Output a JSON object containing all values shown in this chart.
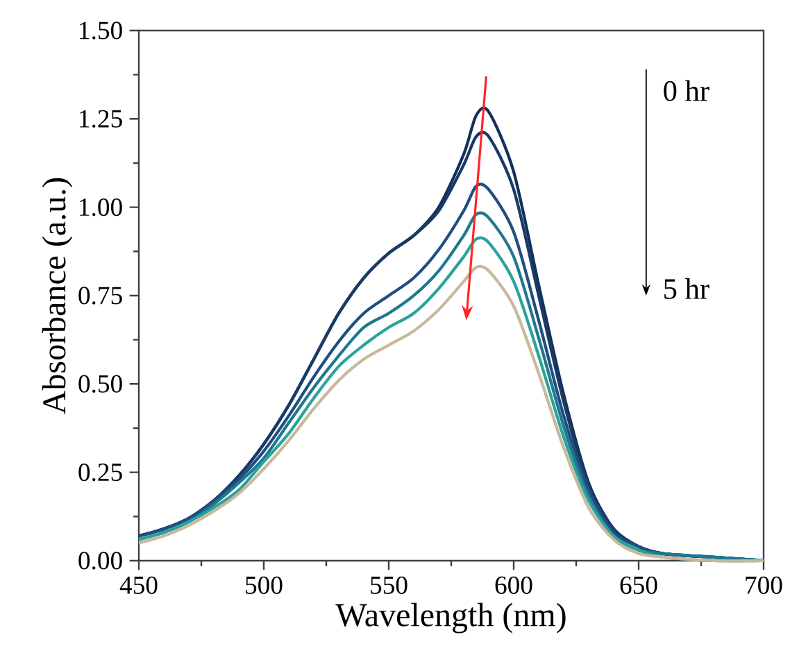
{
  "chart_data": {
    "type": "line",
    "xlabel": "Wavelength (nm)",
    "ylabel": "Absorbance (a.u.)",
    "x": [
      450,
      460,
      470,
      480,
      490,
      500,
      510,
      520,
      530,
      540,
      550,
      560,
      570,
      580,
      585,
      590,
      600,
      610,
      620,
      630,
      640,
      650,
      660,
      680,
      700
    ],
    "series": [
      {
        "color": "#13315c",
        "values": [
          0.07,
          0.09,
          0.12,
          0.17,
          0.24,
          0.33,
          0.44,
          0.57,
          0.7,
          0.8,
          0.87,
          0.92,
          1.0,
          1.15,
          1.26,
          1.27,
          1.1,
          0.78,
          0.47,
          0.22,
          0.09,
          0.04,
          0.02,
          0.01,
          0.0
        ]
      },
      {
        "color": "#1a3a66",
        "values": [
          0.07,
          0.09,
          0.12,
          0.17,
          0.24,
          0.33,
          0.44,
          0.57,
          0.7,
          0.8,
          0.87,
          0.92,
          0.99,
          1.12,
          1.2,
          1.2,
          1.05,
          0.75,
          0.45,
          0.21,
          0.09,
          0.04,
          0.02,
          0.01,
          0.0
        ]
      },
      {
        "color": "#1f4f80",
        "values": [
          0.07,
          0.09,
          0.12,
          0.17,
          0.23,
          0.31,
          0.41,
          0.52,
          0.62,
          0.7,
          0.75,
          0.8,
          0.88,
          0.99,
          1.06,
          1.05,
          0.93,
          0.68,
          0.41,
          0.2,
          0.08,
          0.04,
          0.02,
          0.01,
          0.0
        ]
      },
      {
        "color": "#1f7890",
        "values": [
          0.06,
          0.08,
          0.11,
          0.16,
          0.22,
          0.29,
          0.39,
          0.49,
          0.58,
          0.66,
          0.7,
          0.75,
          0.82,
          0.92,
          0.98,
          0.97,
          0.86,
          0.63,
          0.38,
          0.18,
          0.07,
          0.03,
          0.02,
          0.01,
          0.0
        ]
      },
      {
        "color": "#2aa39a",
        "values": [
          0.06,
          0.08,
          0.11,
          0.15,
          0.2,
          0.28,
          0.36,
          0.46,
          0.55,
          0.61,
          0.66,
          0.7,
          0.77,
          0.86,
          0.91,
          0.9,
          0.79,
          0.58,
          0.35,
          0.17,
          0.07,
          0.03,
          0.01,
          0.0,
          0.0
        ]
      },
      {
        "color": "#c9b89c",
        "values": [
          0.05,
          0.07,
          0.1,
          0.14,
          0.19,
          0.26,
          0.34,
          0.43,
          0.51,
          0.57,
          0.61,
          0.65,
          0.71,
          0.79,
          0.83,
          0.82,
          0.72,
          0.53,
          0.32,
          0.15,
          0.06,
          0.02,
          0.01,
          0.0,
          0.0
        ]
      }
    ],
    "xlim": [
      450,
      700
    ],
    "ylim": [
      0,
      1.5
    ],
    "xticks": [
      450,
      500,
      550,
      600,
      650,
      700
    ],
    "yticks": [
      {
        "value": 0,
        "label": "0.00"
      },
      {
        "value": 0.25,
        "label": "0.25"
      },
      {
        "value": 0.5,
        "label": "0.50"
      },
      {
        "value": 0.75,
        "label": "0.75"
      },
      {
        "value": 1.0,
        "label": "1.00"
      },
      {
        "value": 1.25,
        "label": "1.25"
      },
      {
        "value": 1.5,
        "label": "1.50"
      }
    ],
    "grid": false,
    "marker": "none",
    "line_style": "solid",
    "annotations": [
      "0 hr",
      "5 hr"
    ]
  }
}
